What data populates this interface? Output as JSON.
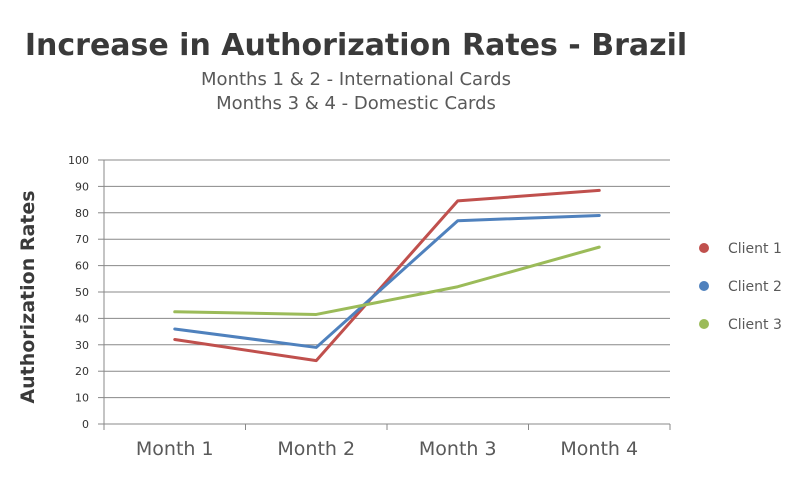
{
  "chart_data": {
    "type": "line",
    "title": "Increase in Authorization Rates - Brazil",
    "subtitle": [
      "Months 1 & 2 - International Cards",
      "Months 3 & 4 - Domestic Cards"
    ],
    "xlabel": "",
    "ylabel": "Authorization Rates",
    "categories": [
      "Month 1",
      "Month 2",
      "Month 3",
      "Month 4"
    ],
    "yticks": [
      0,
      10,
      20,
      30,
      40,
      50,
      60,
      70,
      80,
      90,
      100
    ],
    "ylim": [
      0,
      100
    ],
    "grid": true,
    "legend_position": "right",
    "series": [
      {
        "name": "Client 1",
        "color": "#c0504d",
        "values": [
          32,
          24,
          84.5,
          88.5
        ]
      },
      {
        "name": "Client 2",
        "color": "#4f81bd",
        "values": [
          36,
          29,
          77,
          79
        ]
      },
      {
        "name": "Client 3",
        "color": "#9bbb59",
        "values": [
          42.5,
          41.5,
          52,
          67
        ]
      }
    ]
  }
}
